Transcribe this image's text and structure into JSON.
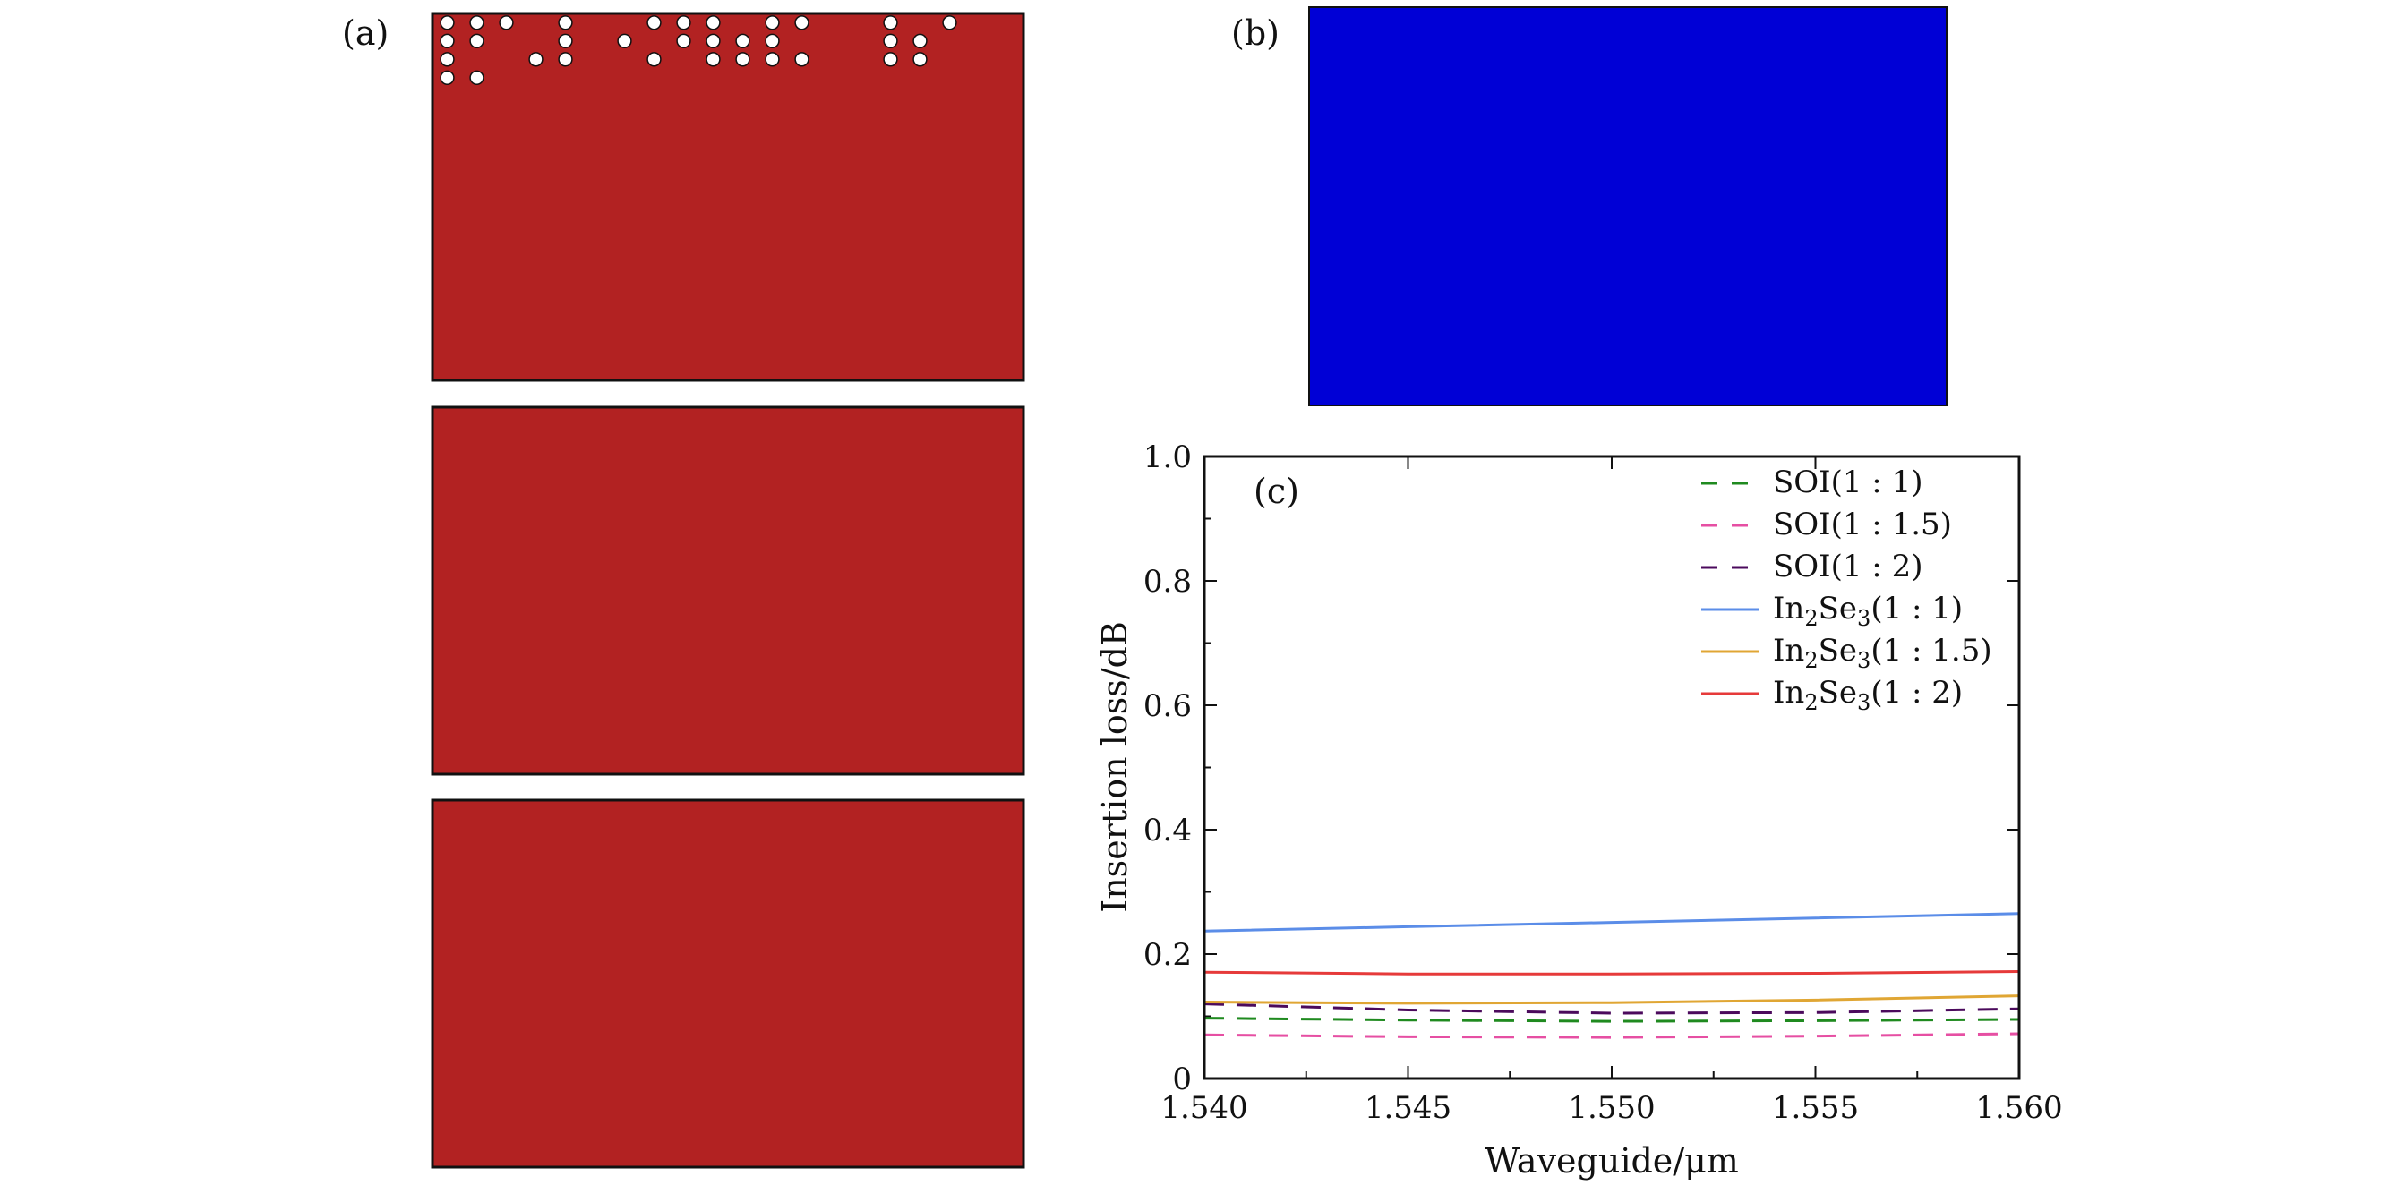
{
  "colors": {
    "panel_a_fill": "#b22222",
    "panel_a_hole": "#ffffff",
    "panel_b_fill": "#0000d6",
    "panel_b_hole": "#c8c8c8"
  },
  "panel_labels": {
    "a": "(a)",
    "b": "(b)",
    "c": "(c)"
  },
  "hole_grid": {
    "rows": 20,
    "cols": 20
  },
  "patterns": {
    "a1": [
      "11101001110110010100",
      "11001010111100011000",
      "10011001011110011000",
      "11000000000000000000",
      "00000000000000000000",
      "00000000000000000000",
      "00000000000000000000",
      "00000000000000000000",
      "00000000000000000000",
      "00000000000000000000",
      "00000000000000000000",
      "00000000000000000000",
      "00000000000000000000",
      "00000000000000000000",
      "00000000000000000000",
      "00000000000000000000",
      "00000000000000000000",
      "00000000000000000000",
      "00000000000000000000",
      "00000000000000000000"
    ]
  },
  "chart_data": {
    "type": "line",
    "xlabel": "Waveguide/μm",
    "ylabel": "Insertion loss/dB",
    "xlim": [
      1.54,
      1.56
    ],
    "ylim": [
      0,
      1.0
    ],
    "x_ticks": [
      "1.540",
      "1.545",
      "1.550",
      "1.555",
      "1.560"
    ],
    "y_ticks": [
      "0",
      "0.2",
      "0.4",
      "0.6",
      "0.8",
      "1.0"
    ],
    "x": [
      1.54,
      1.545,
      1.55,
      1.555,
      1.56
    ],
    "legend_position": "top-right",
    "series": [
      {
        "name": "SOI(1 : 1)",
        "name_parts": [
          "SOI(1 : 1)"
        ],
        "color": "#1f8a1f",
        "dash": "dashed",
        "values": [
          0.097,
          0.094,
          0.092,
          0.093,
          0.095
        ]
      },
      {
        "name": "SOI(1 : 1.5)",
        "name_parts": [
          "SOI(1 : 1.5)"
        ],
        "color": "#e64fa3",
        "dash": "dashed",
        "values": [
          0.07,
          0.067,
          0.066,
          0.068,
          0.072
        ]
      },
      {
        "name": "SOI(1 : 2)",
        "name_parts": [
          "SOI(1 : 2)"
        ],
        "color": "#4b0a5c",
        "dash": "dashed",
        "values": [
          0.12,
          0.11,
          0.105,
          0.106,
          0.112
        ]
      },
      {
        "name": "In2Se3(1 : 1)",
        "name_parts": [
          "In",
          "2",
          "Se",
          "3",
          "(1 : 1)"
        ],
        "color": "#5b8de8",
        "dash": "solid",
        "values": [
          0.237,
          0.244,
          0.251,
          0.258,
          0.265
        ]
      },
      {
        "name": "In2Se3(1 : 1.5)",
        "name_parts": [
          "In",
          "2",
          "Se",
          "3",
          "(1 : 1.5)"
        ],
        "color": "#e0a634",
        "dash": "solid",
        "values": [
          0.123,
          0.121,
          0.122,
          0.126,
          0.133
        ]
      },
      {
        "name": "In2Se3(1 : 2)",
        "name_parts": [
          "In",
          "2",
          "Se",
          "3",
          "(1 : 2)"
        ],
        "color": "#e63a3a",
        "dash": "solid",
        "values": [
          0.171,
          0.168,
          0.168,
          0.169,
          0.172
        ]
      }
    ]
  }
}
